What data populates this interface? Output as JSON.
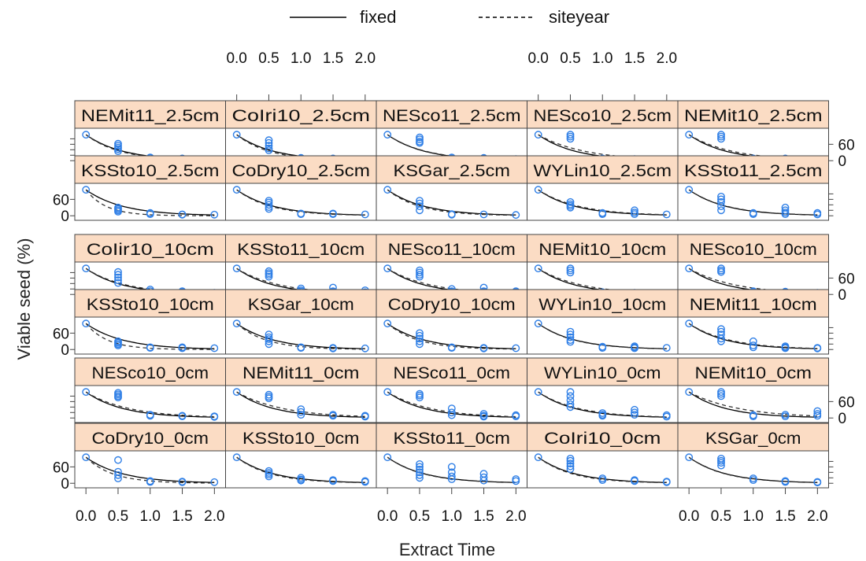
{
  "chart_data": {
    "type": "scatter",
    "xlabel": "Extract Time",
    "ylabel": "Viable seed (%)",
    "xlim": [
      -0.1,
      2.1
    ],
    "ylim": [
      -8,
      110
    ],
    "x_ticks": [
      "0.0",
      "0.5",
      "1.0",
      "1.5",
      "2.0"
    ],
    "x_tick_values": [
      0,
      0.5,
      1,
      1.5,
      2
    ],
    "y_ticks": [
      "0",
      "60"
    ],
    "y_tick_values": [
      0,
      60
    ],
    "legend": {
      "placement": "top",
      "entries": [
        {
          "name": "fixed",
          "style": "solid"
        },
        {
          "name": "siteyear",
          "style": "dashed"
        }
      ]
    },
    "colors": {
      "points": "#2f7fe6",
      "strip": "#fbdcc4",
      "fixed_line": "#000000",
      "siteyear_line": "#333333"
    },
    "x_sample": [
      0,
      0.5,
      1,
      1.5,
      2
    ],
    "rows": [
      [
        {
          "label": "NEMit11_2.5cm",
          "y": [
            [
              95
            ],
            [
              62,
              55,
              48,
              42,
              35
            ],
            [
              12,
              10
            ],
            [
              8,
              6
            ],
            [
              5,
              4
            ]
          ]
        },
        {
          "label": "CoIri10_2.5cm",
          "y": [
            [
              95
            ],
            [
              75,
              65,
              55,
              45,
              38
            ],
            [
              10,
              8
            ],
            [
              8,
              6
            ],
            [
              5,
              4
            ]
          ]
        },
        {
          "label": "NESco11_2.5cm",
          "y": [
            [
              95
            ],
            [
              85,
              78,
              70,
              65
            ],
            [
              12,
              8
            ],
            [
              10,
              7,
              5
            ],
            [
              6,
              4
            ]
          ]
        },
        {
          "label": "NESco10_2.5cm",
          "y": [
            [
              95
            ],
            [
              95,
              88,
              80
            ],
            [
              8,
              6
            ],
            [
              6,
              4
            ],
            [
              3
            ]
          ]
        },
        {
          "label": "NEMit10_2.5cm",
          "y": [
            [
              95
            ],
            [
              95,
              88,
              80
            ],
            [
              8,
              6
            ],
            [
              8,
              6
            ],
            [
              5
            ]
          ]
        }
      ],
      [
        {
          "label": "KSSto10_2.5cm",
          "y": [
            [
              95
            ],
            [
              30,
              25,
              20,
              15
            ],
            [
              10,
              6
            ],
            [
              5,
              4
            ],
            [
              4
            ]
          ]
        },
        {
          "label": "CoDry10_2.5cm",
          "y": [
            [
              95
            ],
            [
              55,
              48,
              40,
              32,
              25
            ],
            [
              8,
              6
            ],
            [
              8,
              6
            ],
            [
              5
            ]
          ]
        },
        {
          "label": "KSGar_2.5cm",
          "y": [
            [
              95
            ],
            [
              55,
              45,
              35,
              20
            ],
            [
              6,
              4
            ],
            [
              5
            ],
            [
              3
            ]
          ]
        },
        {
          "label": "WYLin10_2.5cm",
          "y": [
            [
              95
            ],
            [
              50,
              42,
              36,
              30
            ],
            [
              10,
              6
            ],
            [
              20,
              12,
              6
            ],
            [
              5
            ]
          ]
        },
        {
          "label": "KSSto11_2.5cm",
          "y": [
            [
              95
            ],
            [
              70,
              60,
              50,
              35,
              20
            ],
            [
              10,
              6
            ],
            [
              30,
              20,
              12,
              6
            ],
            [
              10,
              5
            ]
          ]
        }
      ],
      [
        {
          "label": "CoIir10_10cm",
          "y": [
            [
              95
            ],
            [
              82,
              72,
              62,
              52,
              42
            ],
            [
              18,
              12
            ],
            [
              12,
              8
            ],
            [
              6,
              4
            ]
          ]
        },
        {
          "label": "KSSto11_10cm",
          "y": [
            [
              95
            ],
            [
              85,
              78,
              72,
              65
            ],
            [
              22,
              15,
              10
            ],
            [
              25,
              12,
              8
            ],
            [
              15,
              8,
              5
            ]
          ]
        },
        {
          "label": "NESco11_10cm",
          "y": [
            [
              95
            ],
            [
              88,
              80,
              72,
              65
            ],
            [
              20,
              12,
              8
            ],
            [
              25,
              12,
              8
            ],
            [
              12,
              8,
              5
            ]
          ]
        },
        {
          "label": "NEMit10_10cm",
          "y": [
            [
              95
            ],
            [
              95,
              88,
              80
            ],
            [
              8,
              6
            ],
            [
              6,
              4
            ],
            [
              5,
              3
            ]
          ]
        },
        {
          "label": "NESco10_10cm",
          "y": [
            [
              95
            ],
            [
              95,
              88,
              82
            ],
            [
              12,
              8
            ],
            [
              10,
              7
            ],
            [
              6,
              4
            ]
          ]
        }
      ],
      [
        {
          "label": "KSSto10_10cm",
          "y": [
            [
              95
            ],
            [
              30,
              25,
              20,
              15
            ],
            [
              8,
              6
            ],
            [
              8,
              5
            ],
            [
              5
            ]
          ]
        },
        {
          "label": "KSGar_10cm",
          "y": [
            [
              95
            ],
            [
              55,
              45,
              38,
              30,
              20
            ],
            [
              8,
              6
            ],
            [
              6,
              4
            ],
            [
              4
            ]
          ]
        },
        {
          "label": "CoDry10_10cm",
          "y": [
            [
              95
            ],
            [
              60,
              50,
              40,
              30,
              20
            ],
            [
              8,
              6
            ],
            [
              6,
              4
            ],
            [
              5
            ]
          ]
        },
        {
          "label": "WYLin10_10cm",
          "y": [
            [
              95
            ],
            [
              65,
              55,
              45,
              35,
              28
            ],
            [
              10,
              6
            ],
            [
              12,
              8,
              5
            ],
            [
              6
            ]
          ]
        },
        {
          "label": "NEMit11_10cm",
          "y": [
            [
              95
            ],
            [
              75,
              65,
              55,
              40,
              30
            ],
            [
              30,
              15,
              8
            ],
            [
              12,
              8,
              5
            ],
            [
              6,
              4
            ]
          ]
        }
      ],
      [
        {
          "label": "NESco10_0cm",
          "y": [
            [
              95
            ],
            [
              92,
              86,
              80,
              75
            ],
            [
              12,
              8
            ],
            [
              8,
              6
            ],
            [
              6,
              4
            ]
          ]
        },
        {
          "label": "NEMit11_0cm",
          "y": [
            [
              95
            ],
            [
              85,
              78,
              72
            ],
            [
              32,
              22,
              12
            ],
            [
              12,
              8
            ],
            [
              8,
              5
            ]
          ]
        },
        {
          "label": "NESco11_0cm",
          "y": [
            [
              95
            ],
            [
              88,
              82,
              75
            ],
            [
              35,
              20,
              10
            ],
            [
              15,
              8,
              5
            ],
            [
              10,
              6
            ]
          ]
        },
        {
          "label": "WYLin10_0cm",
          "y": [
            [
              95
            ],
            [
              95,
              80,
              65,
              50,
              40
            ],
            [
              18,
              12,
              8
            ],
            [
              30,
              20,
              12
            ],
            [
              10,
              5
            ]
          ]
        },
        {
          "label": "NEMit10_0cm",
          "y": [
            [
              95
            ],
            [
              95,
              88,
              80
            ],
            [
              10,
              6
            ],
            [
              12,
              6
            ],
            [
              25,
              15,
              8
            ]
          ]
        }
      ],
      [
        {
          "label": "CoDry10_0cm",
          "y": [
            [
              95
            ],
            [
              85,
              42,
              30,
              18
            ],
            [
              8,
              5
            ],
            [
              6,
              4
            ],
            [
              4
            ]
          ]
        },
        {
          "label": "KSSto10_0cm",
          "y": [
            [
              95
            ],
            [
              45,
              38,
              32,
              25
            ],
            [
              20,
              14,
              10
            ],
            [
              12,
              8
            ],
            [
              8,
              5
            ]
          ]
        },
        {
          "label": "KSSto11_0cm",
          "y": [
            [
              95
            ],
            [
              70,
              60,
              50,
              40,
              30,
              20
            ],
            [
              60,
              40,
              25,
              15
            ],
            [
              35,
              22,
              10
            ],
            [
              15,
              8
            ]
          ]
        },
        {
          "label": "CoIri10_0cm",
          "y": [
            [
              95
            ],
            [
              90,
              82,
              72,
              62,
              52
            ],
            [
              18,
              12
            ],
            [
              12,
              8
            ],
            [
              6,
              4
            ]
          ]
        },
        {
          "label": "KSGar_0cm",
          "y": [
            [
              95
            ],
            [
              90,
              82,
              75,
              65
            ],
            [
              18,
              12
            ],
            [
              8,
              5
            ],
            [
              5,
              3
            ]
          ]
        }
      ]
    ]
  }
}
